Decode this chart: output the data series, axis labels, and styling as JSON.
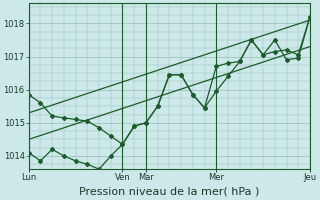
{
  "xlabel": "Pression niveau de la mer( hPa )",
  "bg_color": "#cce8e8",
  "grid_color": "#99bbbb",
  "line_color": "#1a5c2a",
  "ylim": [
    1013.6,
    1018.6
  ],
  "xlim": [
    0,
    24
  ],
  "day_labels": [
    "Lun",
    "Ven",
    "Mar",
    "Mer",
    "Jeu"
  ],
  "day_positions": [
    0,
    8,
    10,
    16,
    24
  ],
  "yticks": [
    1014,
    1015,
    1016,
    1017,
    1018
  ],
  "series1_x": [
    0,
    1,
    2,
    3,
    4,
    5,
    6,
    7,
    8,
    9,
    10,
    11,
    12,
    13,
    14,
    15,
    16,
    17,
    18,
    19,
    20,
    21,
    22,
    23,
    24
  ],
  "series1_y": [
    1014.1,
    1013.85,
    1014.2,
    1014.0,
    1013.85,
    1013.75,
    1013.6,
    1014.0,
    1014.35,
    1014.9,
    1015.0,
    1015.5,
    1016.45,
    1016.45,
    1015.85,
    1015.45,
    1016.7,
    1016.8,
    1016.85,
    1017.5,
    1017.05,
    1017.15,
    1017.2,
    1017.05,
    1018.2
  ],
  "series2_x": [
    0,
    1,
    2,
    3,
    4,
    5,
    6,
    7,
    8,
    9,
    10,
    11,
    12,
    13,
    14,
    15,
    16,
    17,
    18,
    19,
    20,
    21,
    22,
    23,
    24
  ],
  "series2_y": [
    1015.85,
    1015.6,
    1015.2,
    1015.15,
    1015.1,
    1015.05,
    1014.85,
    1014.6,
    1014.35,
    1014.9,
    1015.0,
    1015.5,
    1016.45,
    1016.45,
    1015.85,
    1015.45,
    1015.95,
    1016.4,
    1016.85,
    1017.5,
    1017.05,
    1017.5,
    1016.9,
    1016.95,
    1018.2
  ],
  "trend1_x": [
    0,
    24
  ],
  "trend1_y": [
    1015.3,
    1018.1
  ],
  "trend2_x": [
    0,
    24
  ],
  "trend2_y": [
    1014.5,
    1017.3
  ],
  "vline_positions": [
    0,
    8,
    10,
    16,
    24
  ],
  "xlabel_fontsize": 8,
  "tick_fontsize": 6
}
